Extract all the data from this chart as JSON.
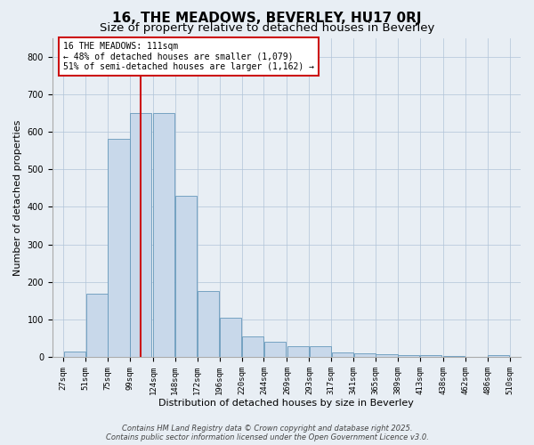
{
  "title": "16, THE MEADOWS, BEVERLEY, HU17 0RJ",
  "subtitle": "Size of property relative to detached houses in Beverley",
  "xlabel": "Distribution of detached houses by size in Beverley",
  "ylabel": "Number of detached properties",
  "bar_color": "#c8d8ea",
  "bar_edge_color": "#6699bb",
  "grid_color": "#b0c4d8",
  "background_color": "#e8eef4",
  "vline_x": 111,
  "vline_color": "#cc1111",
  "annotation_text": "16 THE MEADOWS: 111sqm\n← 48% of detached houses are smaller (1,079)\n51% of semi-detached houses are larger (1,162) →",
  "annotation_box_facecolor": "#ffffff",
  "annotation_box_edgecolor": "#cc1111",
  "bins_left": [
    27,
    51,
    75,
    99,
    124,
    148,
    172,
    196,
    220,
    244,
    269,
    293,
    317,
    341,
    365,
    389,
    413,
    438,
    462,
    486
  ],
  "bin_width": 24,
  "bar_heights": [
    15,
    170,
    580,
    650,
    650,
    430,
    175,
    105,
    55,
    40,
    30,
    30,
    12,
    10,
    8,
    5,
    5,
    3,
    2,
    6
  ],
  "tick_labels": [
    "27sqm",
    "51sqm",
    "75sqm",
    "99sqm",
    "124sqm",
    "148sqm",
    "172sqm",
    "196sqm",
    "220sqm",
    "244sqm",
    "269sqm",
    "293sqm",
    "317sqm",
    "341sqm",
    "365sqm",
    "389sqm",
    "413sqm",
    "438sqm",
    "462sqm",
    "486sqm",
    "510sqm"
  ],
  "tick_positions": [
    27,
    51,
    75,
    99,
    124,
    148,
    172,
    196,
    220,
    244,
    269,
    293,
    317,
    341,
    365,
    389,
    413,
    438,
    462,
    486,
    510
  ],
  "ylim": [
    0,
    850
  ],
  "xlim": [
    15,
    522
  ],
  "yticks": [
    0,
    100,
    200,
    300,
    400,
    500,
    600,
    700,
    800
  ],
  "footer_text": "Contains HM Land Registry data © Crown copyright and database right 2025.\nContains public sector information licensed under the Open Government Licence v3.0.",
  "title_fontsize": 11,
  "subtitle_fontsize": 9.5,
  "axis_label_fontsize": 8,
  "tick_fontsize": 6.5,
  "annotation_fontsize": 7,
  "footer_fontsize": 6
}
